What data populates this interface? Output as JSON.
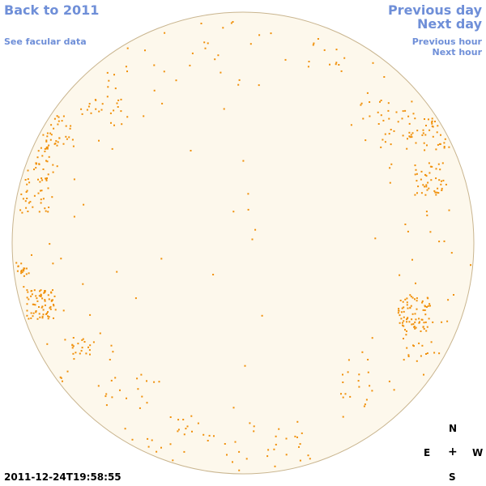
{
  "nav": {
    "back_label": "Back to 2011",
    "facular_label": "See facular data",
    "prev_day_label": "Previous day",
    "next_day_label": "Next day",
    "prev_hour_label": "Previous hour",
    "next_hour_label": "Next hour"
  },
  "compass": {
    "north": "N",
    "east": "E",
    "center": "+",
    "west": "W",
    "south": "S"
  },
  "timestamp": "2011-12-24T19:58:55",
  "colors": {
    "link": "#6f8fd8",
    "disk_fill": "#fdf8ec",
    "disk_border": "#c9b58f",
    "facula": "#f0900a"
  }
}
